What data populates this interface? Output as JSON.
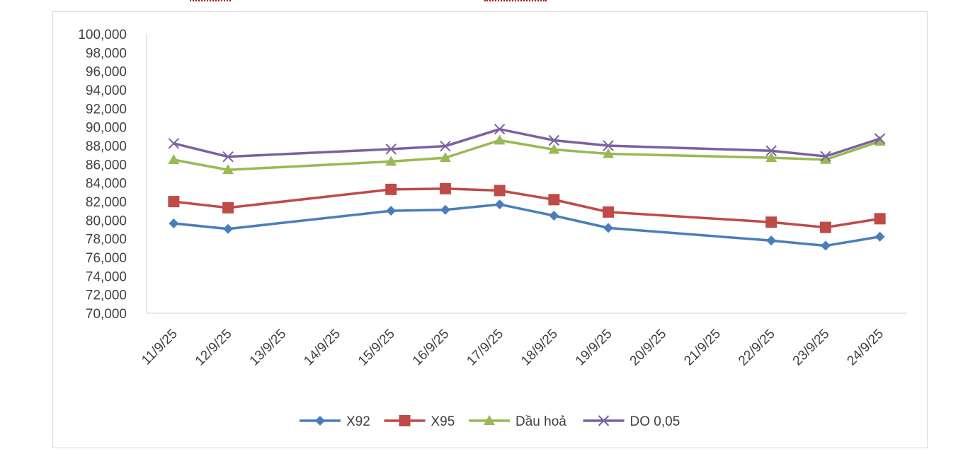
{
  "chart_data": {
    "type": "line",
    "title": "",
    "xlabel": "",
    "ylabel": "",
    "categories": [
      "11/9/25",
      "12/9/25",
      "13/9/25",
      "14/9/25",
      "15/9/25",
      "16/9/25",
      "17/9/25",
      "18/9/25",
      "19/9/25",
      "20/9/25",
      "21/9/25",
      "22/9/25",
      "23/9/25",
      "24/9/25"
    ],
    "ylim": [
      70000,
      100000
    ],
    "ytick_step": 2000,
    "ytick_labels": [
      "70,000",
      "72,000",
      "74,000",
      "76,000",
      "78,000",
      "80,000",
      "82,000",
      "84,000",
      "86,000",
      "88,000",
      "90,000",
      "92,000",
      "94,000",
      "96,000",
      "98,000",
      "100,000"
    ],
    "grid": false,
    "legend_position": "bottom",
    "series": [
      {
        "name": "X92",
        "color": "#4a7ebb",
        "marker": "diamond",
        "values": [
          79650,
          79060,
          null,
          null,
          81000,
          81110,
          81690,
          80480,
          79160,
          null,
          null,
          77800,
          77250,
          78220
        ]
      },
      {
        "name": "X95",
        "color": "#be4b48",
        "marker": "square",
        "values": [
          81990,
          81330,
          null,
          null,
          83300,
          83380,
          83180,
          82200,
          80870,
          null,
          null,
          79780,
          79220,
          80150
        ]
      },
      {
        "name": "Dầu hoả",
        "color": "#98b954",
        "marker": "triangle",
        "values": [
          86480,
          85400,
          null,
          null,
          86300,
          86700,
          88580,
          87580,
          87130,
          null,
          null,
          86700,
          86500,
          88460
        ]
      },
      {
        "name": "DO 0,05",
        "color": "#7d60a0",
        "marker": "x",
        "values": [
          88240,
          86810,
          null,
          null,
          87630,
          87950,
          89770,
          88570,
          88000,
          null,
          null,
          87450,
          86850,
          88750
        ]
      }
    ]
  },
  "theme": {
    "axis_color": "#d9d9d9",
    "text_color": "#404040",
    "top_mark_color": "#c00000"
  }
}
